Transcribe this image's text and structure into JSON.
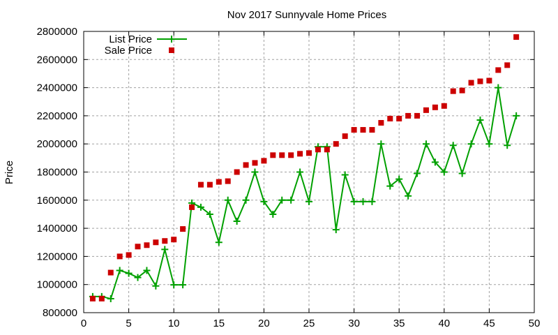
{
  "chart_data": {
    "type": "line",
    "title": "Nov 2017 Sunnyvale Home Prices",
    "xlabel": "",
    "ylabel": "Price",
    "xlim": [
      0,
      50
    ],
    "ylim": [
      800000,
      2800000
    ],
    "xticks": [
      0,
      5,
      10,
      15,
      20,
      25,
      30,
      35,
      40,
      45,
      50
    ],
    "yticks": [
      800000,
      1000000,
      1200000,
      1400000,
      1600000,
      1800000,
      2000000,
      2200000,
      2400000,
      2600000,
      2800000
    ],
    "grid": true,
    "legend_position": "top-left",
    "x": [
      1,
      2,
      3,
      4,
      5,
      6,
      7,
      8,
      9,
      10,
      11,
      12,
      13,
      14,
      15,
      16,
      17,
      18,
      19,
      20,
      21,
      22,
      23,
      24,
      25,
      26,
      27,
      28,
      29,
      30,
      31,
      32,
      33,
      34,
      35,
      36,
      37,
      38,
      39,
      40,
      41,
      42,
      43,
      44,
      45,
      46,
      47,
      48
    ],
    "series": [
      {
        "name": "List Price",
        "style": "linespoints",
        "color": "#00a000",
        "values": [
          915000,
          915000,
          899000,
          1100000,
          1080000,
          1050000,
          1100000,
          990000,
          1250000,
          998000,
          998000,
          1580000,
          1550000,
          1500000,
          1300000,
          1600000,
          1450000,
          1600000,
          1800000,
          1590000,
          1500000,
          1600000,
          1600000,
          1800000,
          1590000,
          1980000,
          1980000,
          1390000,
          1780000,
          1590000,
          1590000,
          1590000,
          2000000,
          1700000,
          1750000,
          1630000,
          1790000,
          2000000,
          1870000,
          1800000,
          1990000,
          1790000,
          2000000,
          2170000,
          2000000,
          2400000,
          1990000,
          2200000
        ]
      },
      {
        "name": "Sale Price",
        "style": "points",
        "color": "#cc0000",
        "values": [
          900000,
          900000,
          1085000,
          1200000,
          1210000,
          1270000,
          1280000,
          1300000,
          1310000,
          1320000,
          1395000,
          1550000,
          1710000,
          1710000,
          1730000,
          1735000,
          1800000,
          1850000,
          1865000,
          1880000,
          1920000,
          1920000,
          1920000,
          1930000,
          1935000,
          1960000,
          1960000,
          2000000,
          2055000,
          2100000,
          2100000,
          2100000,
          2150000,
          2180000,
          2180000,
          2200000,
          2200000,
          2240000,
          2260000,
          2270000,
          2375000,
          2380000,
          2435000,
          2445000,
          2450000,
          2525000,
          2560000,
          2760000
        ]
      }
    ]
  }
}
